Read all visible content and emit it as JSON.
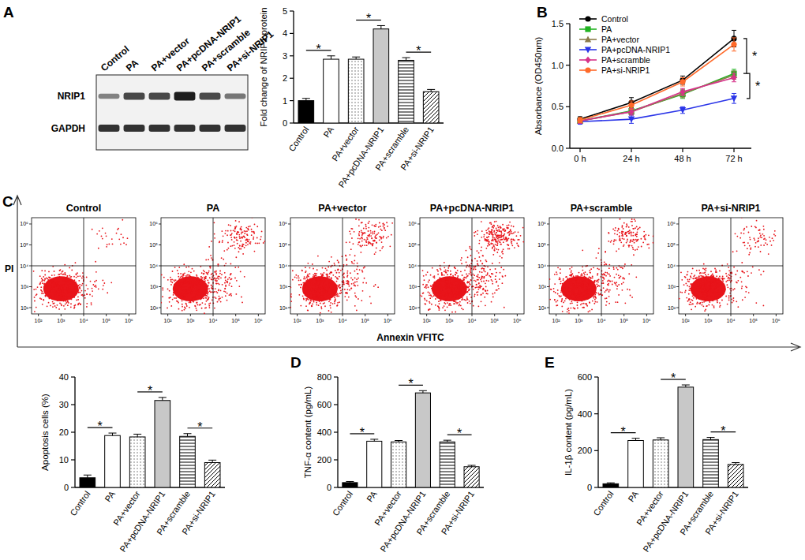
{
  "chart_data": [
    {
      "type": "blot",
      "panel": "A",
      "lanes": [
        "Control",
        "PA",
        "PA+vector",
        "PA+pcDNA-NRIP1",
        "PA+scramble",
        "PA+si-NRIP1"
      ],
      "rows": [
        "NRIP1",
        "GAPDH"
      ]
    },
    {
      "type": "bar",
      "y_label": "Fold change of NRIP1 protein",
      "categories": [
        "Control",
        "PA",
        "PA+vector",
        "PA+pcDNA-NRIP1",
        "PA+scramble",
        "PA+si-NRIP1"
      ],
      "values": [
        1.0,
        2.85,
        2.85,
        4.2,
        2.8,
        1.4
      ],
      "errors": [
        0.1,
        0.15,
        0.1,
        0.15,
        0.12,
        0.1
      ],
      "ylim": [
        0,
        5
      ],
      "yticks": [
        0,
        1,
        2,
        3,
        4,
        5
      ],
      "annotations": [
        {
          "from": 0,
          "to": 1,
          "text": "*"
        },
        {
          "from": 2,
          "to": 3,
          "text": "*"
        },
        {
          "from": 4,
          "to": 5,
          "text": "*"
        }
      ]
    },
    {
      "type": "line",
      "panel": "B",
      "y_label": "Absorbance (OD450nm)",
      "categories": [
        "0 h",
        "24 h",
        "48 h",
        "72 h"
      ],
      "series": [
        {
          "name": "Control",
          "color": "#000000",
          "marker": "circle",
          "values": [
            0.35,
            0.55,
            0.82,
            1.32
          ],
          "errors": [
            0.03,
            0.06,
            0.05,
            0.1
          ]
        },
        {
          "name": "PA",
          "color": "#22b322",
          "marker": "square",
          "values": [
            0.33,
            0.45,
            0.65,
            0.9
          ],
          "errors": [
            0.03,
            0.04,
            0.05,
            0.05
          ]
        },
        {
          "name": "PA+vector",
          "color": "#8c7b4a",
          "marker": "triangle",
          "values": [
            0.33,
            0.44,
            0.66,
            0.88
          ],
          "errors": [
            0.03,
            0.04,
            0.05,
            0.05
          ]
        },
        {
          "name": "PA+pcDNA-NRIP1",
          "color": "#2b35e8",
          "marker": "triangle-down",
          "values": [
            0.32,
            0.35,
            0.46,
            0.6
          ],
          "errors": [
            0.03,
            0.05,
            0.04,
            0.06
          ]
        },
        {
          "name": "PA+scramble",
          "color": "#d6338a",
          "marker": "diamond",
          "values": [
            0.33,
            0.44,
            0.68,
            0.85
          ],
          "errors": [
            0.03,
            0.04,
            0.04,
            0.05
          ]
        },
        {
          "name": "PA+si-NRIP1",
          "color": "#ff6a2a",
          "marker": "circle",
          "values": [
            0.34,
            0.52,
            0.8,
            1.25
          ],
          "errors": [
            0.03,
            0.05,
            0.05,
            0.08
          ]
        }
      ],
      "ylim": [
        0,
        1.5
      ],
      "yticks": [
        {
          "value": 0,
          "label": "0.0"
        },
        {
          "value": 0.5,
          "label": "0.5"
        },
        {
          "value": 1,
          "label": "1.0"
        },
        {
          "value": 1.5,
          "label": "1.5"
        }
      ],
      "legend": "upper left",
      "annotations": [
        {
          "from": 0,
          "to": 1,
          "text": "*"
        },
        {
          "from": 1,
          "to": 3,
          "text": "*"
        }
      ]
    },
    {
      "type": "flow_cytometry",
      "panel": "C",
      "titles": [
        "Control",
        "PA",
        "PA+vector",
        "PA+pcDNA-NRIP1",
        "PA+scramble",
        "PA+si-NRIP1"
      ],
      "x_label": "Annexin VFITC",
      "y_label": "PI",
      "log": true,
      "xlim": [
        50,
        2000000
      ],
      "ylim": [
        50,
        2000000
      ],
      "xticks": [
        {
          "value": 100,
          "label": "10²"
        },
        {
          "value": 1000,
          "label": "10³"
        },
        {
          "value": 10000,
          "label": "10⁴"
        },
        {
          "value": 100000,
          "label": "10⁵"
        },
        {
          "value": 1000000,
          "label": "10⁶"
        }
      ],
      "yticks": [
        {
          "value": 100,
          "label": "10²"
        },
        {
          "value": 1000,
          "label": "10³"
        },
        {
          "value": 10000,
          "label": "10⁴"
        },
        {
          "value": 100000,
          "label": "10⁵"
        },
        {
          "value": 1000000,
          "label": "10⁶"
        }
      ],
      "gate": [
        10000,
        10000
      ]
    },
    {
      "type": "bar",
      "y_label": "Apoptosis cells (%)",
      "categories": [
        "Control",
        "PA",
        "PA+vector",
        "PA+pcDNA-NRIP1",
        "PA+scramble",
        "PA+si-NRIP1"
      ],
      "values": [
        3.5,
        18.8,
        18.3,
        31.5,
        18.5,
        9.0
      ],
      "errors": [
        1.0,
        0.9,
        1.0,
        1.1,
        1.0,
        0.9
      ],
      "ylim": [
        0,
        40
      ],
      "yticks": [
        0,
        10,
        20,
        30,
        40
      ],
      "annotations": [
        {
          "from": 0,
          "to": 1,
          "text": "*"
        },
        {
          "from": 2,
          "to": 3,
          "text": "*"
        },
        {
          "from": 4,
          "to": 5,
          "text": "*"
        }
      ]
    },
    {
      "type": "bar",
      "panel": "D",
      "y_label": "TNF-α content (pg/mL)",
      "categories": [
        "Control",
        "PA",
        "PA+vector",
        "PA+pcDNA-NRIP1",
        "PA+scramble",
        "PA+si-NRIP1"
      ],
      "values": [
        35,
        335,
        330,
        685,
        330,
        150
      ],
      "errors": [
        8,
        14,
        10,
        16,
        12,
        10
      ],
      "ylim": [
        0,
        800
      ],
      "yticks": [
        0,
        200,
        400,
        600,
        800
      ],
      "annotations": [
        {
          "from": 0,
          "to": 1,
          "text": "*"
        },
        {
          "from": 2,
          "to": 3,
          "text": "*"
        },
        {
          "from": 4,
          "to": 5,
          "text": "*"
        }
      ]
    },
    {
      "type": "bar",
      "panel": "E",
      "y_label": "IL-1β content (pg/mL)",
      "categories": [
        "Control",
        "PA",
        "PA+vector",
        "PA+pcDNA-NRIP1",
        "PA+scramble",
        "PA+si-NRIP1"
      ],
      "values": [
        20,
        255,
        258,
        545,
        260,
        125
      ],
      "errors": [
        5,
        12,
        12,
        12,
        12,
        10
      ],
      "ylim": [
        0,
        600
      ],
      "yticks": [
        0,
        200,
        400,
        600
      ],
      "annotations": [
        {
          "from": 0,
          "to": 1,
          "text": "*"
        },
        {
          "from": 2,
          "to": 3,
          "text": "*"
        },
        {
          "from": 4,
          "to": 5,
          "text": "*"
        }
      ]
    }
  ]
}
